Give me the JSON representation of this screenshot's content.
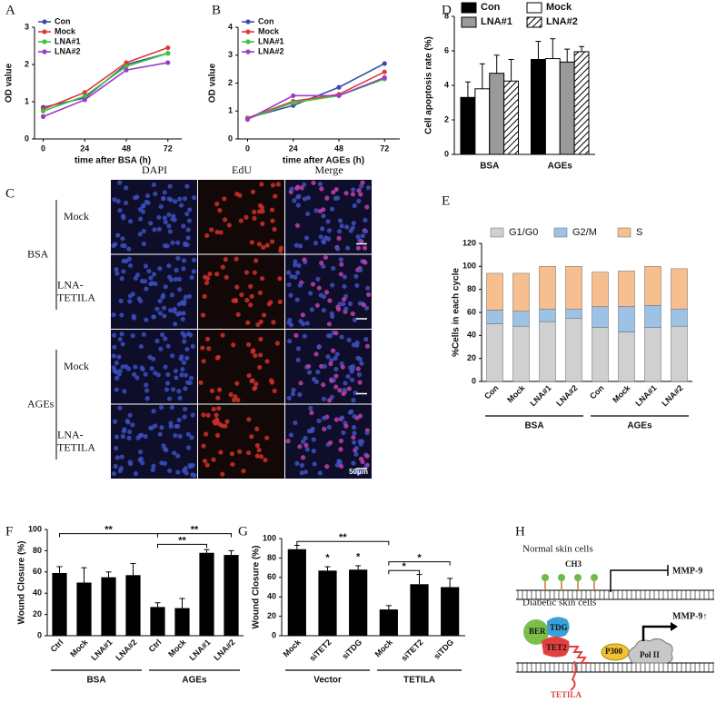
{
  "chart_data": [
    {
      "panel": "A",
      "type": "line",
      "xlabel": "time after BSA (h)",
      "ylabel": "OD value",
      "x": [
        0,
        24,
        48,
        72
      ],
      "xlim": [
        -5,
        80
      ],
      "xticks": [
        0,
        24,
        48,
        72
      ],
      "ylim": [
        0,
        3
      ],
      "yticks": [
        0,
        1,
        2,
        3
      ],
      "series": [
        {
          "name": "Con",
          "color": "#3a4fa8",
          "values": [
            0.85,
            1.1,
            2.0,
            2.3
          ]
        },
        {
          "name": "Mock",
          "color": "#e03a3a",
          "values": [
            0.8,
            1.25,
            2.05,
            2.45
          ]
        },
        {
          "name": "LNA#1",
          "color": "#3cc43c",
          "values": [
            0.75,
            1.15,
            1.95,
            2.3
          ]
        },
        {
          "name": "LNA#2",
          "color": "#9a3cc8",
          "values": [
            0.6,
            1.05,
            1.85,
            2.05
          ]
        }
      ]
    },
    {
      "panel": "B",
      "type": "line",
      "xlabel": "time after AGEs (h)",
      "ylabel": "OD value",
      "x": [
        0,
        24,
        48,
        72
      ],
      "xlim": [
        -5,
        80
      ],
      "xticks": [
        0,
        24,
        48,
        72
      ],
      "ylim": [
        0,
        4
      ],
      "yticks": [
        0,
        1,
        2,
        3,
        4
      ],
      "series": [
        {
          "name": "Con",
          "color": "#3a4fa8",
          "values": [
            0.75,
            1.2,
            1.85,
            2.7
          ]
        },
        {
          "name": "Mock",
          "color": "#e03a3a",
          "values": [
            0.75,
            1.35,
            1.6,
            2.4
          ]
        },
        {
          "name": "LNA#1",
          "color": "#3cc43c",
          "values": [
            0.72,
            1.3,
            1.55,
            2.15
          ]
        },
        {
          "name": "LNA#2",
          "color": "#9a3cc8",
          "values": [
            0.7,
            1.55,
            1.55,
            2.2
          ]
        }
      ]
    },
    {
      "panel": "D",
      "type": "bar",
      "ylabel": "Cell apoptosis rate (%)",
      "categories": [
        "BSA",
        "AGEs"
      ],
      "ylim": [
        0,
        8
      ],
      "yticks": [
        0,
        2,
        4,
        6,
        8
      ],
      "series": [
        {
          "name": "Con",
          "color": "#000000",
          "values": [
            3.3,
            5.5
          ],
          "errors": [
            0.9,
            1.05
          ]
        },
        {
          "name": "Mock",
          "color": "#ffffff",
          "values": [
            3.8,
            5.55
          ],
          "errors": [
            1.45,
            1.15
          ]
        },
        {
          "name": "LNA#1",
          "color": "#9a9a9a",
          "values": [
            4.7,
            5.35
          ],
          "errors": [
            1.05,
            0.75
          ]
        },
        {
          "name": "LNA#2",
          "color": "#ffffff",
          "pattern": "hatch",
          "values": [
            4.25,
            5.95
          ],
          "errors": [
            1.25,
            0.3
          ]
        }
      ]
    },
    {
      "panel": "E",
      "type": "bar",
      "stacked": true,
      "ylabel": "%Cells in each cycle",
      "categories": [
        "Con",
        "Mock",
        "LNA#1",
        "LNA#2",
        "Con",
        "Mock",
        "LNA#1",
        "LNA#2"
      ],
      "group_labels": [
        "BSA",
        "AGEs"
      ],
      "ylim": [
        0,
        120
      ],
      "yticks": [
        0,
        20,
        40,
        60,
        80,
        100,
        120
      ],
      "series": [
        {
          "name": "G1/G0",
          "color": "#d0d0d0",
          "values": [
            50,
            48,
            52,
            55,
            47,
            43,
            47,
            48
          ]
        },
        {
          "name": "G2/M",
          "color": "#9cc3e6",
          "values": [
            12,
            13,
            11,
            8,
            18,
            22,
            19,
            15
          ]
        },
        {
          "name": "S",
          "color": "#f7be8f",
          "values": [
            32,
            33,
            37,
            37,
            30,
            31,
            34,
            35
          ]
        }
      ]
    },
    {
      "panel": "F",
      "type": "bar",
      "ylabel": "Wound Closure (%)",
      "categories": [
        "Ctrl",
        "Mock",
        "LNA#1",
        "LNA#2",
        "Ctrl",
        "Mock",
        "LNA#1",
        "LNA#2"
      ],
      "group_labels": [
        "BSA",
        "AGEs"
      ],
      "ylim": [
        0,
        100
      ],
      "yticks": [
        0,
        20,
        40,
        60,
        80,
        100
      ],
      "color": "#000000",
      "values": [
        59,
        50,
        55,
        57,
        27,
        26,
        78,
        76
      ],
      "errors": [
        6,
        14,
        5,
        11,
        4,
        9,
        3,
        4
      ],
      "annotations": [
        "**",
        "**",
        "**"
      ]
    },
    {
      "panel": "G",
      "type": "bar",
      "ylabel": "Wound Closure (%)",
      "categories": [
        "Mock",
        "siTET2",
        "siTDG",
        "Mock",
        "siTET2",
        "siTDG"
      ],
      "group_labels": [
        "Vector",
        "TETILA"
      ],
      "ylim": [
        0,
        100
      ],
      "yticks": [
        0,
        20,
        40,
        60,
        80,
        100
      ],
      "color": "#000000",
      "values": [
        89,
        67,
        68,
        27,
        53,
        50
      ],
      "errors": [
        4,
        4,
        4,
        4,
        10,
        9
      ],
      "annotations": [
        "**",
        "*",
        "*",
        "*",
        "*"
      ]
    }
  ],
  "images": {
    "panel": "C",
    "columns": [
      "DAPI",
      "EdU",
      "Merge"
    ],
    "groups": [
      {
        "name": "BSA",
        "rows": [
          [
            "Mock"
          ],
          [
            "LNA-",
            "TETILA"
          ]
        ]
      },
      {
        "name": "AGEs",
        "rows": [
          [
            "Mock"
          ],
          [
            "LNA-",
            "TETILA"
          ]
        ]
      }
    ],
    "scale_bar": "50μm"
  },
  "diagram": {
    "panel": "H",
    "normal": "Normal skin cells",
    "methyl": "CH3",
    "gene": "MMP-9",
    "diabetic": "Diabetic skin cells",
    "ber": "BER",
    "tdg": "TDG",
    "tet2": "TET2",
    "p300": "P300",
    "pol": "Pol II",
    "gene_up": "MMP-9↑",
    "lncrna": "TETILA"
  }
}
